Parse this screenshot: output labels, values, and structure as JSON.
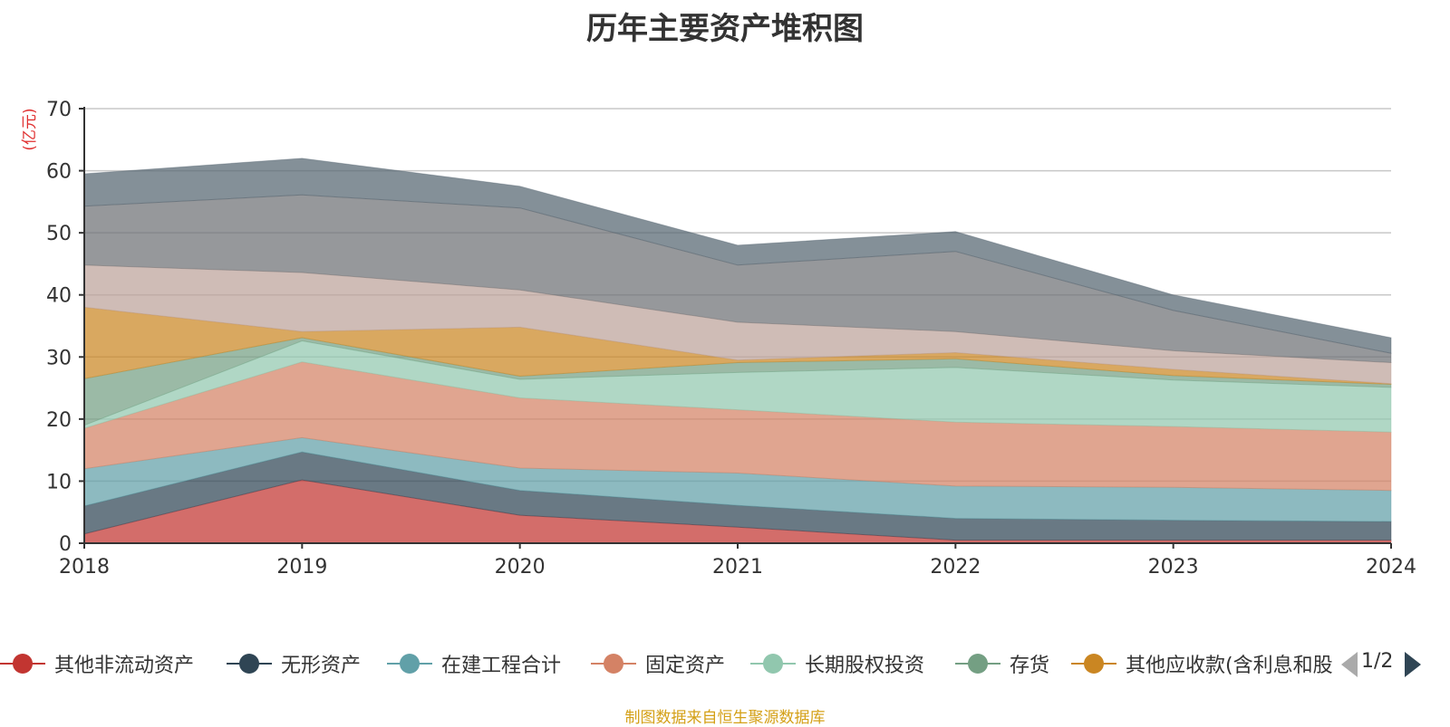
{
  "chart_data": {
    "type": "area",
    "stacked": true,
    "title": "历年主要资产堆积图",
    "unit_label": "(亿元)",
    "x": [
      "2018",
      "2019",
      "2020",
      "2021",
      "2022",
      "2023",
      "2024"
    ],
    "ylim": [
      0,
      70
    ],
    "yticks": [
      0,
      10,
      20,
      30,
      40,
      50,
      60,
      70
    ],
    "grid": true,
    "series": [
      {
        "name": "其他非流动资产",
        "color": "#c23531",
        "legend": true,
        "values": [
          1.5,
          10.2,
          4.5,
          2.6,
          0.5,
          0.5,
          0.5
        ]
      },
      {
        "name": "无形资产",
        "color": "#2f4554",
        "legend": true,
        "values": [
          4.5,
          4.5,
          4.0,
          3.5,
          3.5,
          3.2,
          3.0
        ]
      },
      {
        "name": "在建工程合计",
        "color": "#61a0a8",
        "legend": true,
        "values": [
          6.0,
          2.3,
          3.6,
          5.2,
          5.2,
          5.3,
          5.0
        ]
      },
      {
        "name": "固定资产",
        "color": "#d48265",
        "legend": true,
        "values": [
          6.5,
          12.2,
          11.3,
          10.2,
          10.3,
          9.8,
          9.4
        ]
      },
      {
        "name": "长期股权投资",
        "color": "#91c7ae",
        "legend": true,
        "values": [
          0.5,
          3.4,
          3.0,
          6.0,
          8.8,
          7.5,
          7.2
        ]
      },
      {
        "name": "存货",
        "color": "#749f83",
        "legend": true,
        "values": [
          7.5,
          0.5,
          0.5,
          1.6,
          1.4,
          0.7,
          0.5
        ]
      },
      {
        "name": "其他应收款(含利息和股利)",
        "legend_text": "其他应收款(含利息和股",
        "color": "#ca8622",
        "legend": true,
        "values": [
          11.5,
          1.0,
          7.9,
          0.4,
          1.0,
          1.0,
          0.1
        ]
      },
      {
        "color": "#bda29a",
        "legend": false,
        "values": [
          6.8,
          9.5,
          6.0,
          6.1,
          3.4,
          3.0,
          3.4
        ]
      },
      {
        "color": "#6e7074",
        "legend": false,
        "values": [
          9.5,
          12.5,
          13.2,
          9.2,
          12.9,
          6.5,
          1.5
        ]
      },
      {
        "color": "#546570",
        "legend": false,
        "values": [
          5.2,
          5.9,
          3.5,
          3.2,
          3.2,
          2.5,
          2.5
        ]
      }
    ]
  },
  "legend_pager": {
    "text": "1/2",
    "prev_icon": "triangle-left-icon",
    "next_icon": "triangle-right-icon"
  },
  "source_note": "制图数据来自恒生聚源数据库"
}
